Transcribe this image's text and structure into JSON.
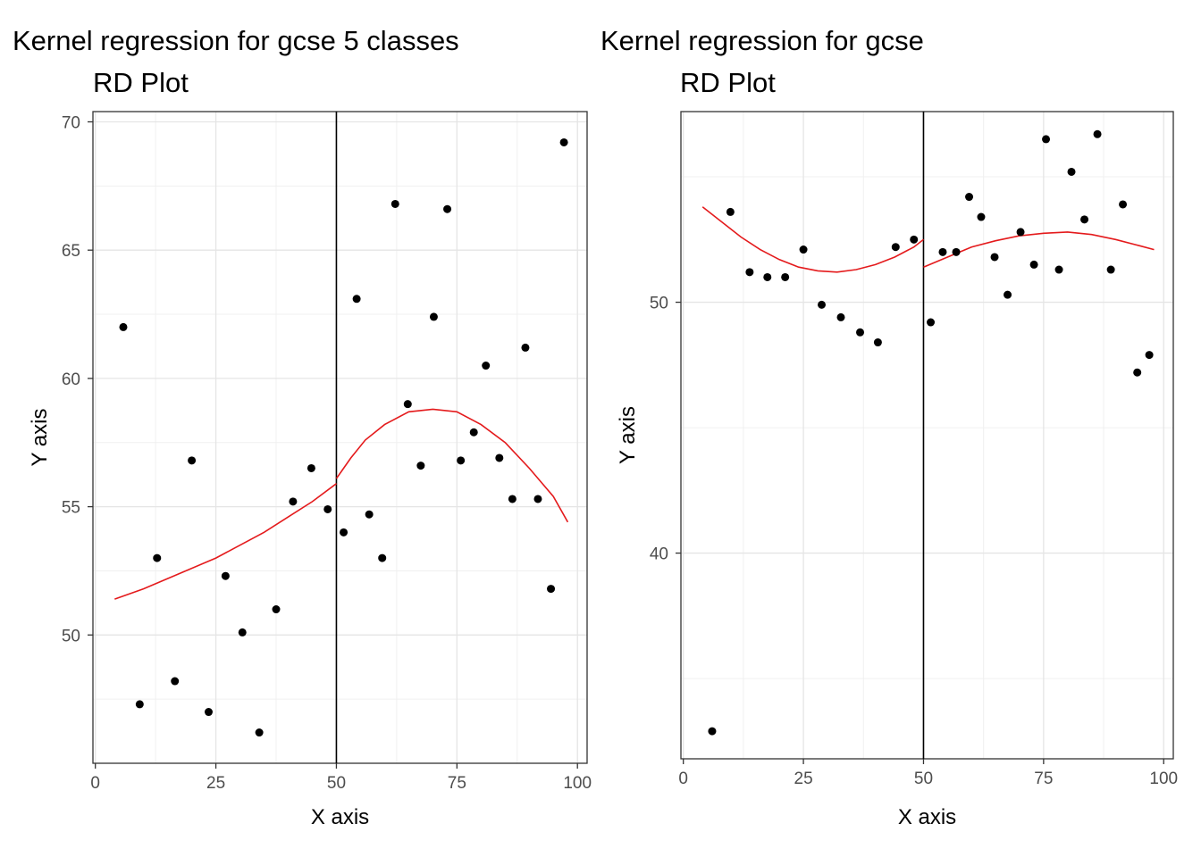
{
  "chart_data": [
    {
      "type": "scatter",
      "title": "Kernel regression for gcse 5 classes",
      "subtitle": "RD Plot",
      "xlabel": "X axis",
      "ylabel": "Y axis",
      "xlim": [
        -0.5,
        102
      ],
      "ylim": [
        45,
        70.4
      ],
      "xticks": [
        0,
        25,
        50,
        75,
        100
      ],
      "yticks": [
        50,
        55,
        60,
        65,
        70
      ],
      "cutoff": 50,
      "grid": true,
      "line_color": "#e41a1c",
      "point_color": "#000000",
      "points": [
        {
          "x": 5.8,
          "y": 62.0
        },
        {
          "x": 9.2,
          "y": 47.3
        },
        {
          "x": 12.8,
          "y": 53.0
        },
        {
          "x": 16.5,
          "y": 48.2
        },
        {
          "x": 20.0,
          "y": 56.8
        },
        {
          "x": 23.5,
          "y": 47.0
        },
        {
          "x": 27.0,
          "y": 52.3
        },
        {
          "x": 30.5,
          "y": 50.1
        },
        {
          "x": 34.0,
          "y": 46.2
        },
        {
          "x": 37.5,
          "y": 51.0
        },
        {
          "x": 41.0,
          "y": 55.2
        },
        {
          "x": 44.8,
          "y": 56.5
        },
        {
          "x": 48.2,
          "y": 54.9
        },
        {
          "x": 51.5,
          "y": 54.0
        },
        {
          "x": 54.2,
          "y": 63.1
        },
        {
          "x": 56.8,
          "y": 54.7
        },
        {
          "x": 59.5,
          "y": 53.0
        },
        {
          "x": 62.2,
          "y": 66.8
        },
        {
          "x": 64.8,
          "y": 59.0
        },
        {
          "x": 67.5,
          "y": 56.6
        },
        {
          "x": 70.2,
          "y": 62.4
        },
        {
          "x": 73.0,
          "y": 66.6
        },
        {
          "x": 75.8,
          "y": 56.8
        },
        {
          "x": 78.5,
          "y": 57.9
        },
        {
          "x": 81.0,
          "y": 60.5
        },
        {
          "x": 83.8,
          "y": 56.9
        },
        {
          "x": 86.5,
          "y": 55.3
        },
        {
          "x": 89.2,
          "y": 61.2
        },
        {
          "x": 91.8,
          "y": 55.3
        },
        {
          "x": 94.5,
          "y": 51.8
        },
        {
          "x": 97.2,
          "y": 69.2
        }
      ],
      "fit_left": [
        {
          "x": 4.0,
          "y": 51.4
        },
        {
          "x": 10.0,
          "y": 51.8
        },
        {
          "x": 15.0,
          "y": 52.2
        },
        {
          "x": 20.0,
          "y": 52.6
        },
        {
          "x": 25.0,
          "y": 53.0
        },
        {
          "x": 30.0,
          "y": 53.5
        },
        {
          "x": 35.0,
          "y": 54.0
        },
        {
          "x": 40.0,
          "y": 54.6
        },
        {
          "x": 45.0,
          "y": 55.2
        },
        {
          "x": 50.0,
          "y": 55.9
        }
      ],
      "fit_right": [
        {
          "x": 50.0,
          "y": 56.1
        },
        {
          "x": 53.0,
          "y": 56.9
        },
        {
          "x": 56.0,
          "y": 57.6
        },
        {
          "x": 60.0,
          "y": 58.2
        },
        {
          "x": 65.0,
          "y": 58.7
        },
        {
          "x": 70.0,
          "y": 58.8
        },
        {
          "x": 75.0,
          "y": 58.7
        },
        {
          "x": 80.0,
          "y": 58.2
        },
        {
          "x": 85.0,
          "y": 57.5
        },
        {
          "x": 90.0,
          "y": 56.5
        },
        {
          "x": 95.0,
          "y": 55.4
        },
        {
          "x": 98.0,
          "y": 54.4
        }
      ]
    },
    {
      "type": "scatter",
      "title": "Kernel regression for gcse",
      "subtitle": "RD Plot",
      "xlabel": "X axis",
      "ylabel": "Y axis",
      "xlim": [
        -0.5,
        102
      ],
      "ylim": [
        31.8,
        57.6
      ],
      "xticks": [
        0,
        25,
        50,
        75,
        100
      ],
      "yticks": [
        40,
        50
      ],
      "yminor": [
        35,
        45,
        55
      ],
      "cutoff": 50,
      "grid": true,
      "line_color": "#e41a1c",
      "point_color": "#000000",
      "points": [
        {
          "x": 6.0,
          "y": 32.9
        },
        {
          "x": 9.8,
          "y": 53.6
        },
        {
          "x": 13.8,
          "y": 51.2
        },
        {
          "x": 17.5,
          "y": 51.0
        },
        {
          "x": 21.2,
          "y": 51.0
        },
        {
          "x": 25.0,
          "y": 52.1
        },
        {
          "x": 28.8,
          "y": 49.9
        },
        {
          "x": 32.8,
          "y": 49.4
        },
        {
          "x": 36.8,
          "y": 48.8
        },
        {
          "x": 40.5,
          "y": 48.4
        },
        {
          "x": 44.2,
          "y": 52.2
        },
        {
          "x": 48.0,
          "y": 52.5
        },
        {
          "x": 51.5,
          "y": 49.2
        },
        {
          "x": 54.0,
          "y": 52.0
        },
        {
          "x": 56.8,
          "y": 52.0
        },
        {
          "x": 59.5,
          "y": 54.2
        },
        {
          "x": 62.0,
          "y": 53.4
        },
        {
          "x": 64.8,
          "y": 51.8
        },
        {
          "x": 67.5,
          "y": 50.3
        },
        {
          "x": 70.2,
          "y": 52.8
        },
        {
          "x": 73.0,
          "y": 51.5
        },
        {
          "x": 75.5,
          "y": 56.5
        },
        {
          "x": 78.2,
          "y": 51.3
        },
        {
          "x": 80.8,
          "y": 55.2
        },
        {
          "x": 83.5,
          "y": 53.3
        },
        {
          "x": 86.2,
          "y": 56.7
        },
        {
          "x": 89.0,
          "y": 51.3
        },
        {
          "x": 91.5,
          "y": 53.9
        },
        {
          "x": 94.5,
          "y": 47.2
        },
        {
          "x": 97.0,
          "y": 47.9
        }
      ],
      "fit_left": [
        {
          "x": 4.0,
          "y": 53.8
        },
        {
          "x": 8.0,
          "y": 53.2
        },
        {
          "x": 12.0,
          "y": 52.6
        },
        {
          "x": 16.0,
          "y": 52.1
        },
        {
          "x": 20.0,
          "y": 51.7
        },
        {
          "x": 24.0,
          "y": 51.4
        },
        {
          "x": 28.0,
          "y": 51.25
        },
        {
          "x": 32.0,
          "y": 51.2
        },
        {
          "x": 36.0,
          "y": 51.3
        },
        {
          "x": 40.0,
          "y": 51.5
        },
        {
          "x": 44.0,
          "y": 51.8
        },
        {
          "x": 48.0,
          "y": 52.2
        },
        {
          "x": 50.0,
          "y": 52.5
        }
      ],
      "fit_right": [
        {
          "x": 50.0,
          "y": 51.4
        },
        {
          "x": 55.0,
          "y": 51.8
        },
        {
          "x": 60.0,
          "y": 52.2
        },
        {
          "x": 65.0,
          "y": 52.45
        },
        {
          "x": 70.0,
          "y": 52.65
        },
        {
          "x": 75.0,
          "y": 52.75
        },
        {
          "x": 80.0,
          "y": 52.8
        },
        {
          "x": 85.0,
          "y": 52.7
        },
        {
          "x": 90.0,
          "y": 52.5
        },
        {
          "x": 95.0,
          "y": 52.25
        },
        {
          "x": 98.0,
          "y": 52.1
        }
      ]
    }
  ]
}
